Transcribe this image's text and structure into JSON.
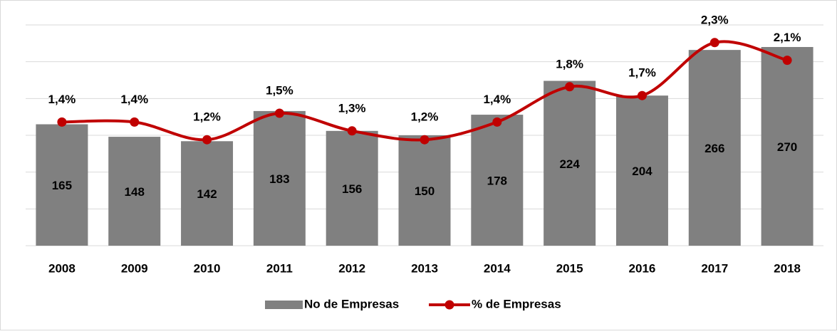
{
  "chart_data": {
    "type": "bar",
    "categories": [
      "2008",
      "2009",
      "2010",
      "2011",
      "2012",
      "2013",
      "2014",
      "2015",
      "2016",
      "2017",
      "2018"
    ],
    "series": [
      {
        "name": "No de Empresas",
        "type": "bar",
        "color": "#808080",
        "values": [
          165,
          148,
          142,
          183,
          156,
          150,
          178,
          224,
          204,
          266,
          270
        ]
      },
      {
        "name": "% de Empresas",
        "type": "line",
        "axis": "y2",
        "color": "#c00000",
        "values": [
          1.4,
          1.4,
          1.2,
          1.5,
          1.3,
          1.2,
          1.4,
          1.8,
          1.7,
          2.3,
          2.1
        ],
        "value_labels": [
          "1,4%",
          "1,4%",
          "1,2%",
          "1,5%",
          "1,3%",
          "1,2%",
          "1,4%",
          "1,8%",
          "1,7%",
          "2,3%",
          "2,1%"
        ]
      }
    ],
    "ylim": [
      0,
      300
    ],
    "yticks": [
      0,
      50,
      100,
      150,
      200,
      250,
      300
    ],
    "y2lim": [
      0,
      2.5
    ],
    "grid": true,
    "legend": "bottom"
  }
}
